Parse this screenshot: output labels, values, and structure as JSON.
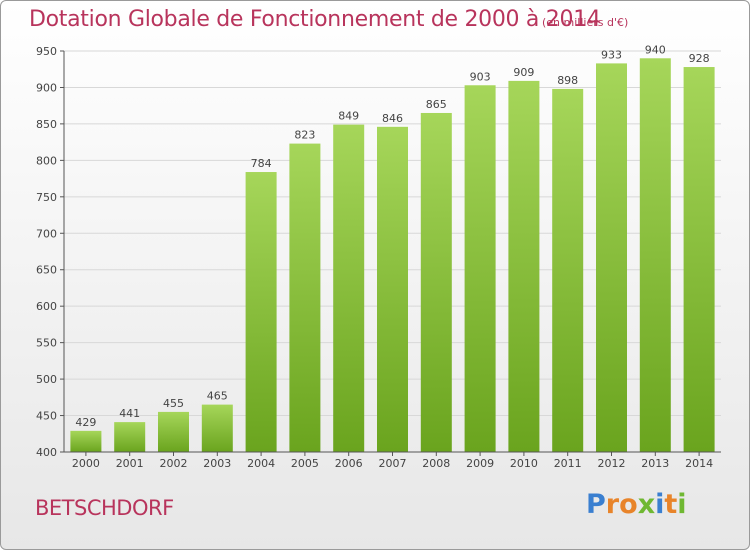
{
  "title": "Dotation Globale de Fonctionnement de 2000 à 2014",
  "subtitle": "(en milliers d'€)",
  "commune": "BETSCHDORF",
  "logo": {
    "letters": [
      "P",
      "r",
      "o",
      "x",
      "i",
      "t",
      "i"
    ],
    "colors": [
      "#3a7fd0",
      "#e8842a",
      "#e8842a",
      "#6fb832",
      "#3a7fd0",
      "#e8842a",
      "#6fb832"
    ]
  },
  "colors": {
    "title": "#b8345c",
    "bar_light": "#a6d65a",
    "bar_dark": "#6aa41e",
    "grid": "#d8d8d8"
  },
  "chart_data": {
    "type": "bar",
    "categories": [
      "2000",
      "2001",
      "2002",
      "2003",
      "2004",
      "2005",
      "2006",
      "2007",
      "2008",
      "2009",
      "2010",
      "2011",
      "2012",
      "2013",
      "2014"
    ],
    "values": [
      429,
      441,
      455,
      465,
      784,
      823,
      849,
      846,
      865,
      903,
      909,
      898,
      933,
      940,
      928
    ],
    "ylim": [
      400,
      950
    ],
    "yticks": [
      400,
      450,
      500,
      550,
      600,
      650,
      700,
      750,
      800,
      850,
      900,
      950
    ],
    "grid": true,
    "show_value_labels": true
  }
}
